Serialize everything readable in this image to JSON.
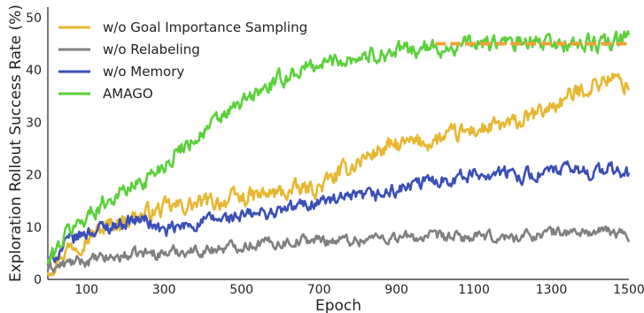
{
  "chart_data": {
    "type": "line",
    "xlabel": "Epoch",
    "ylabel": "Exploration Rollout Success Rate (%)",
    "xlim": [
      0,
      1500
    ],
    "ylim": [
      0,
      52
    ],
    "x_ticks": [
      100,
      300,
      500,
      700,
      900,
      1100,
      1300,
      1500
    ],
    "y_ticks": [
      0,
      10,
      20,
      30,
      40,
      50
    ],
    "grid": false,
    "legend_position": "top-left",
    "series": [
      {
        "name": "w/o Goal Importance Sampling",
        "color": "#e8b731",
        "x": [
          0,
          50,
          100,
          150,
          200,
          250,
          300,
          350,
          400,
          450,
          500,
          550,
          600,
          650,
          700,
          750,
          800,
          850,
          900,
          950,
          1000,
          1050,
          1100,
          1150,
          1200,
          1250,
          1300,
          1350,
          1400,
          1450,
          1500
        ],
        "y": [
          2,
          6,
          8,
          10,
          11.5,
          12.5,
          13.5,
          14,
          14.5,
          15,
          15.5,
          16,
          16.5,
          17,
          17.5,
          20,
          22.5,
          24.5,
          25.5,
          26,
          26.5,
          27.5,
          28.5,
          29,
          29.5,
          31,
          33,
          35,
          37,
          38.5,
          37
        ]
      },
      {
        "name": "w/o Relabeling",
        "color": "#808080",
        "x": [
          0,
          50,
          100,
          150,
          200,
          250,
          300,
          350,
          400,
          450,
          500,
          550,
          600,
          650,
          700,
          750,
          800,
          850,
          900,
          950,
          1000,
          1050,
          1100,
          1150,
          1200,
          1250,
          1300,
          1350,
          1400,
          1450,
          1500
        ],
        "y": [
          2,
          3,
          3.5,
          4,
          4.5,
          5,
          5,
          5.5,
          5.5,
          6,
          6.5,
          7,
          7,
          7.5,
          7.5,
          7.5,
          7.5,
          8,
          8,
          8,
          8,
          8,
          8,
          8,
          8,
          8.5,
          9,
          9,
          9,
          9,
          8.5
        ]
      },
      {
        "name": "w/o Memory",
        "color": "#3a4fb8",
        "x": [
          0,
          50,
          100,
          150,
          200,
          250,
          300,
          350,
          400,
          450,
          500,
          550,
          600,
          650,
          700,
          750,
          800,
          850,
          900,
          950,
          1000,
          1050,
          1100,
          1150,
          1200,
          1250,
          1300,
          1350,
          1400,
          1450,
          1500
        ],
        "y": [
          3,
          7,
          9,
          10,
          11,
          11.5,
          9,
          10,
          11,
          11.5,
          12,
          12.5,
          13,
          14,
          15,
          15,
          15.5,
          16,
          17,
          18,
          19,
          19.5,
          20,
          20.5,
          20,
          20,
          20.5,
          21,
          20.5,
          21,
          20
        ]
      },
      {
        "name": "AMAGO",
        "color": "#5ad13a",
        "x": [
          0,
          50,
          100,
          150,
          200,
          250,
          300,
          350,
          400,
          450,
          500,
          550,
          600,
          650,
          700,
          750,
          800,
          850,
          900,
          950,
          1000,
          1050,
          1100,
          1150,
          1200,
          1250,
          1300,
          1350,
          1400,
          1450,
          1500
        ],
        "y": [
          3,
          9,
          12,
          15,
          17,
          19,
          22,
          25.5,
          28,
          31,
          33.5,
          36,
          38,
          40,
          41,
          42,
          42.5,
          43,
          43.5,
          44,
          44,
          44.5,
          45,
          45,
          45,
          45,
          45,
          45,
          45,
          45,
          46
        ]
      }
    ],
    "reference_line": {
      "color": "#f0a038",
      "x": [
        1000,
        1500
      ],
      "y": [
        45,
        45
      ]
    }
  }
}
